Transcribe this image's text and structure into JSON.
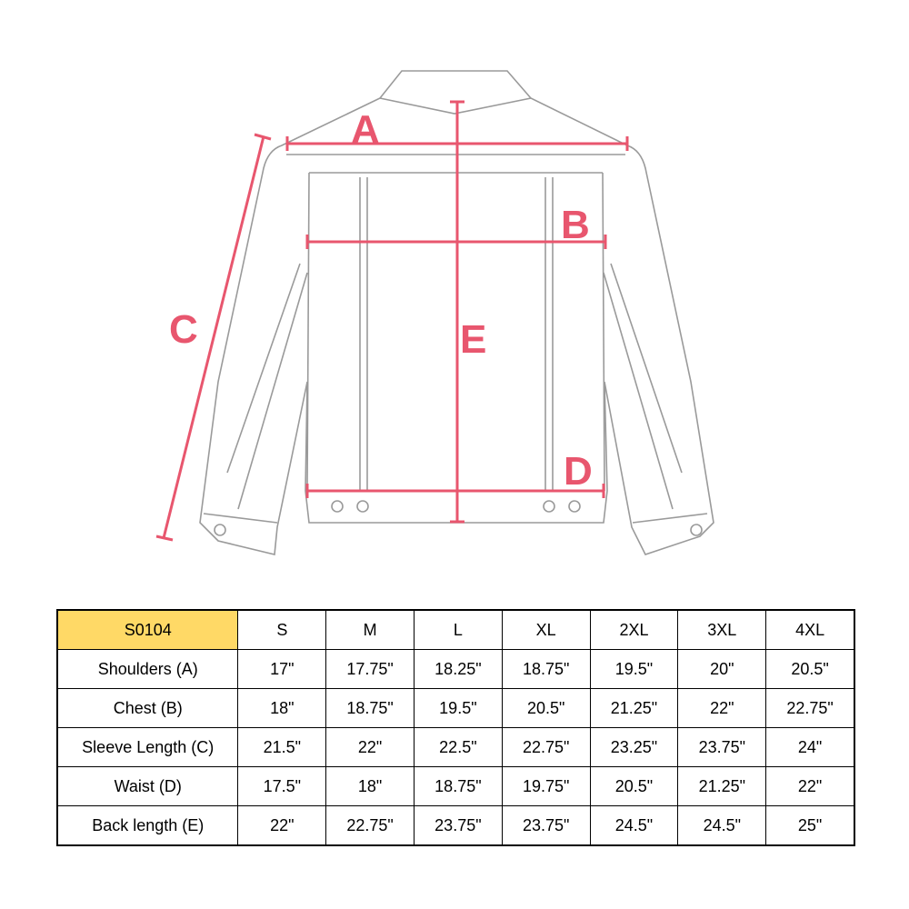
{
  "diagram": {
    "labels": {
      "A": "A",
      "B": "B",
      "C": "C",
      "D": "D",
      "E": "E"
    },
    "measure_color": "#e8566e",
    "outline_color": "#9a9a9a"
  },
  "table": {
    "product_code": "S0104",
    "header_color": "#ffd966",
    "sizes": [
      "S",
      "M",
      "L",
      "XL",
      "2XL",
      "3XL",
      "4XL"
    ],
    "rows": [
      {
        "label": "Shoulders (A)",
        "values": [
          "17\"",
          "17.75\"",
          "18.25\"",
          "18.75\"",
          "19.5\"",
          "20\"",
          "20.5\""
        ]
      },
      {
        "label": "Chest (B)",
        "values": [
          "18\"",
          "18.75\"",
          "19.5\"",
          "20.5\"",
          "21.25\"",
          "22\"",
          "22.75\""
        ]
      },
      {
        "label": "Sleeve Length (C)",
        "values": [
          "21.5\"",
          "22\"",
          "22.5\"",
          "22.75\"",
          "23.25\"",
          "23.75\"",
          "24\""
        ]
      },
      {
        "label": "Waist (D)",
        "values": [
          "17.5\"",
          "18\"",
          "18.75\"",
          "19.75\"",
          "20.5\"",
          "21.25\"",
          "22\""
        ]
      },
      {
        "label": "Back length (E)",
        "values": [
          "22\"",
          "22.75\"",
          "23.75\"",
          "23.75\"",
          "24.5\"",
          "24.5\"",
          "25\""
        ]
      }
    ]
  }
}
